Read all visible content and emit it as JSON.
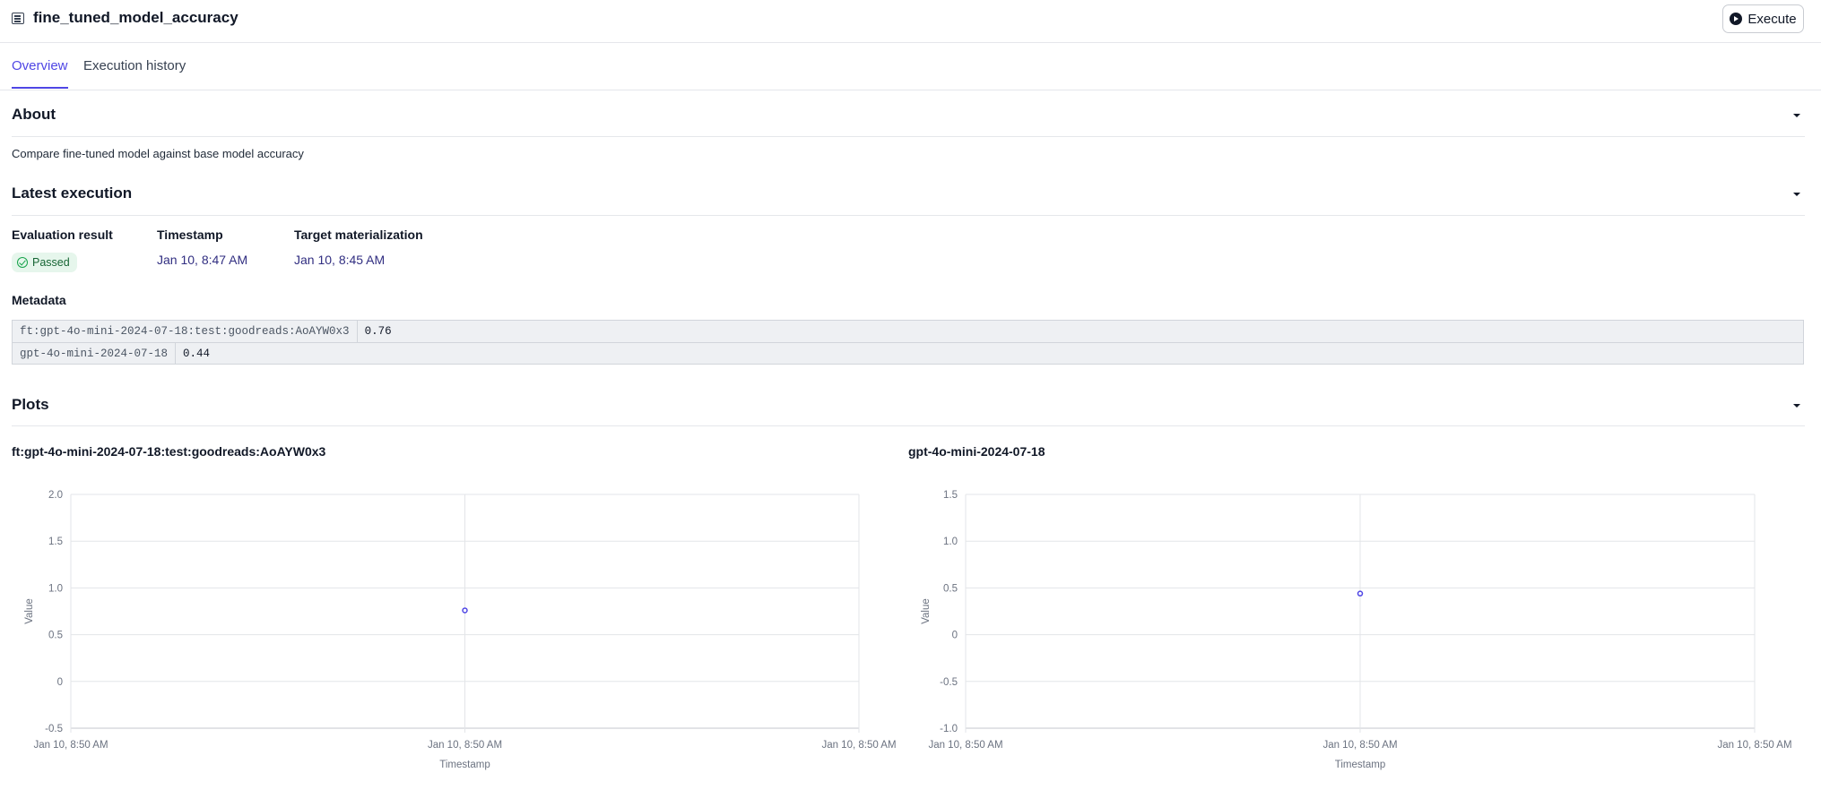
{
  "header": {
    "title": "fine_tuned_model_accuracy",
    "title_icon": "report-icon",
    "execute_label": "Execute",
    "execute_icon": "play-circle-icon"
  },
  "tabs": [
    {
      "label": "Overview",
      "active": true
    },
    {
      "label": "Execution history",
      "active": false
    }
  ],
  "about": {
    "heading": "About",
    "description": "Compare fine-tuned model against base model accuracy"
  },
  "latest_execution": {
    "heading": "Latest execution",
    "evaluation_result_label": "Evaluation result",
    "evaluation_result": "Passed",
    "timestamp_label": "Timestamp",
    "timestamp": "Jan 10, 8:47 AM",
    "target_label": "Target materialization",
    "target": "Jan 10, 8:45 AM",
    "metadata_label": "Metadata",
    "metadata": [
      {
        "key": "ft:gpt-4o-mini-2024-07-18:test:goodreads:AoAYW0x3",
        "value": "0.76"
      },
      {
        "key": "gpt-4o-mini-2024-07-18",
        "value": "0.44"
      }
    ]
  },
  "plots": {
    "heading": "Plots"
  },
  "colors": {
    "accent": "#4f46e5",
    "link": "#312e81",
    "passed_bg": "#e6f6ec",
    "passed_text": "#166534"
  },
  "chart_data": [
    {
      "type": "scatter",
      "title": "ft:gpt-4o-mini-2024-07-18:test:goodreads:AoAYW0x3",
      "xlabel": "Timestamp",
      "ylabel": "Value",
      "x_ticks": [
        "Jan 10, 8:50 AM",
        "Jan 10, 8:50 AM",
        "Jan 10, 8:50 AM"
      ],
      "y_ticks": [
        "-0.5",
        "0",
        "0.5",
        "1.0",
        "1.5",
        "2.0"
      ],
      "ylim": [
        -0.5,
        2.0
      ],
      "grid": true,
      "points": [
        {
          "x": "Jan 10, 8:50 AM",
          "y": 0.76
        }
      ]
    },
    {
      "type": "scatter",
      "title": "gpt-4o-mini-2024-07-18",
      "xlabel": "Timestamp",
      "ylabel": "Value",
      "x_ticks": [
        "Jan 10, 8:50 AM",
        "Jan 10, 8:50 AM",
        "Jan 10, 8:50 AM"
      ],
      "y_ticks": [
        "-1.0",
        "-0.5",
        "0",
        "0.5",
        "1.0",
        "1.5"
      ],
      "ylim": [
        -1.0,
        1.5
      ],
      "grid": true,
      "points": [
        {
          "x": "Jan 10, 8:50 AM",
          "y": 0.44
        }
      ]
    }
  ]
}
